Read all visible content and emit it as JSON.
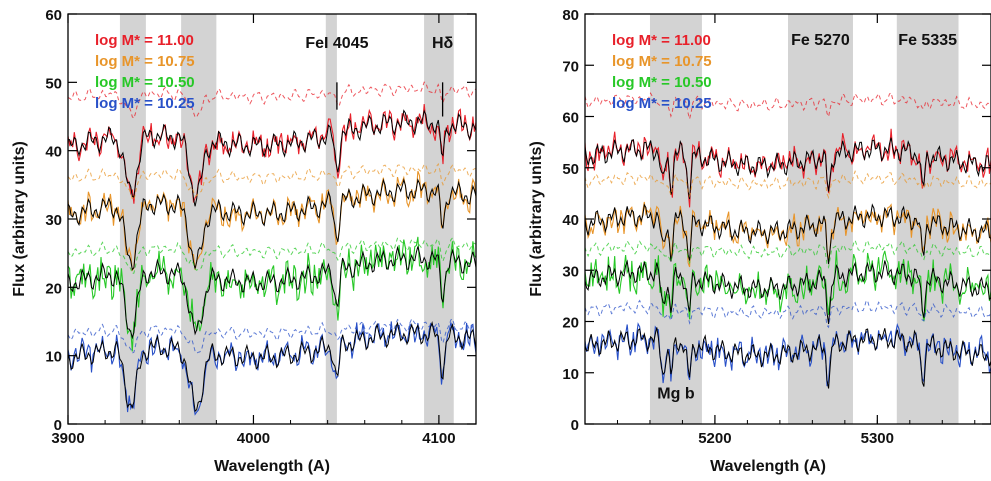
{
  "colors": {
    "red": "#e8202a",
    "orange": "#e8952a",
    "green": "#27c827",
    "blue": "#2850c8",
    "band": "#d3d3d3",
    "model": "#000000"
  },
  "chart_data": [
    {
      "type": "line",
      "xlabel": "Wavelength (A)",
      "ylabel": "Flux (arbitrary units)",
      "xlim": [
        3900,
        4120
      ],
      "ylim": [
        0,
        60
      ],
      "xticks": [
        3900,
        4000,
        4100
      ],
      "yticks": [
        0,
        10,
        20,
        30,
        40,
        50,
        60
      ],
      "bands": [
        [
          3928,
          3942
        ],
        [
          3961,
          3980
        ],
        [
          4039,
          4045
        ],
        [
          4092,
          4108
        ]
      ],
      "absorption_lines": [
        3934,
        3969,
        4045,
        4102
      ],
      "annotations": [
        {
          "text": "FeI 4045",
          "x": 4045,
          "y": 55,
          "line_from": 50,
          "line_to": 46
        },
        {
          "text": "Hδ",
          "x": 4102,
          "y": 55,
          "line_from": 50,
          "line_to": 45
        }
      ],
      "legend_position": "top-left",
      "series": [
        {
          "name": "log M* = 11.00",
          "color": "red",
          "level": 42,
          "dashed_offset": 7
        },
        {
          "name": "log M* = 10.75",
          "color": "orange",
          "level": 32,
          "dashed_offset": 5
        },
        {
          "name": "log M* = 10.50",
          "color": "green",
          "level": 22,
          "dashed_offset": 4
        },
        {
          "name": "log M* = 10.25",
          "color": "blue",
          "level": 11,
          "dashed_offset": 3
        }
      ]
    },
    {
      "type": "line",
      "xlabel": "Wavelength (A)",
      "ylabel": "Flux (arbitrary units)",
      "xlim": [
        5120,
        5370
      ],
      "ylim": [
        0,
        80
      ],
      "xticks": [
        5200,
        5300
      ],
      "yticks": [
        0,
        10,
        20,
        30,
        40,
        50,
        60,
        70,
        80
      ],
      "bands": [
        [
          5160,
          5192
        ],
        [
          5245,
          5285
        ],
        [
          5312,
          5350
        ]
      ],
      "absorption_lines": [
        5168,
        5173,
        5184,
        5270,
        5328
      ],
      "annotations": [
        {
          "text": "Fe 5270",
          "x": 5265,
          "y": 74
        },
        {
          "text": "Fe 5335",
          "x": 5331,
          "y": 74
        },
        {
          "text": "Mg b",
          "x": 5176,
          "y": 5
        }
      ],
      "legend_position": "top-left",
      "series": [
        {
          "name": "log M* = 11.00",
          "color": "red",
          "level": 52,
          "dashed_offset": 9
        },
        {
          "name": "log M* = 10.75",
          "color": "orange",
          "level": 39,
          "dashed_offset": 7
        },
        {
          "name": "log M* = 10.50",
          "color": "green",
          "level": 28,
          "dashed_offset": 5
        },
        {
          "name": "log M* = 10.25",
          "color": "blue",
          "level": 15,
          "dashed_offset": 6
        }
      ]
    }
  ]
}
